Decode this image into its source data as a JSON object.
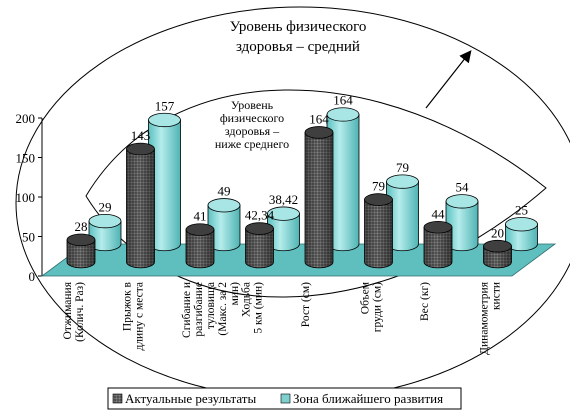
{
  "chart_data": {
    "type": "bar",
    "categories": [
      [
        "Отжимания",
        "(Колич. Раз)"
      ],
      [
        "Прыжок в",
        "длину с места"
      ],
      [
        "Сгибание и",
        "разгибание",
        "туловища",
        "(Макс. за 2",
        "мин)"
      ],
      [
        "Ходьба",
        "5 км (мин)"
      ],
      [
        "Рост (см)"
      ],
      [
        "Объем",
        "груди (см)"
      ],
      [
        "Вес (кг)"
      ],
      [
        "Динамометрия",
        "кисти"
      ]
    ],
    "series": [
      {
        "name": "Актуальные результаты",
        "values": [
          28,
          143,
          41,
          42.34,
          164,
          79,
          44,
          20
        ],
        "labels": [
          "28",
          "143",
          "41",
          "42,34",
          "164",
          "79",
          "44",
          "20"
        ]
      },
      {
        "name": "Зона ближайшего развития",
        "values": [
          29,
          157,
          49,
          38.42,
          164,
          79,
          54,
          25
        ],
        "labels": [
          "29",
          "157",
          "49",
          "38,42",
          "164",
          "79",
          "54",
          "25"
        ]
      }
    ],
    "y_ticks": [
      "0",
      "50",
      "100",
      "150",
      "200"
    ],
    "ylim": [
      0,
      200
    ],
    "annotations": {
      "outer": [
        "Уровень физического",
        "здоровья – средний"
      ],
      "inner": [
        "Уровень",
        "физического",
        "здоровья –",
        "ниже среднего"
      ]
    },
    "legend_position": "bottom",
    "colors": {
      "actual": "#555555",
      "zone": "#7fcfcf",
      "floor": "#5fbfbf"
    }
  }
}
